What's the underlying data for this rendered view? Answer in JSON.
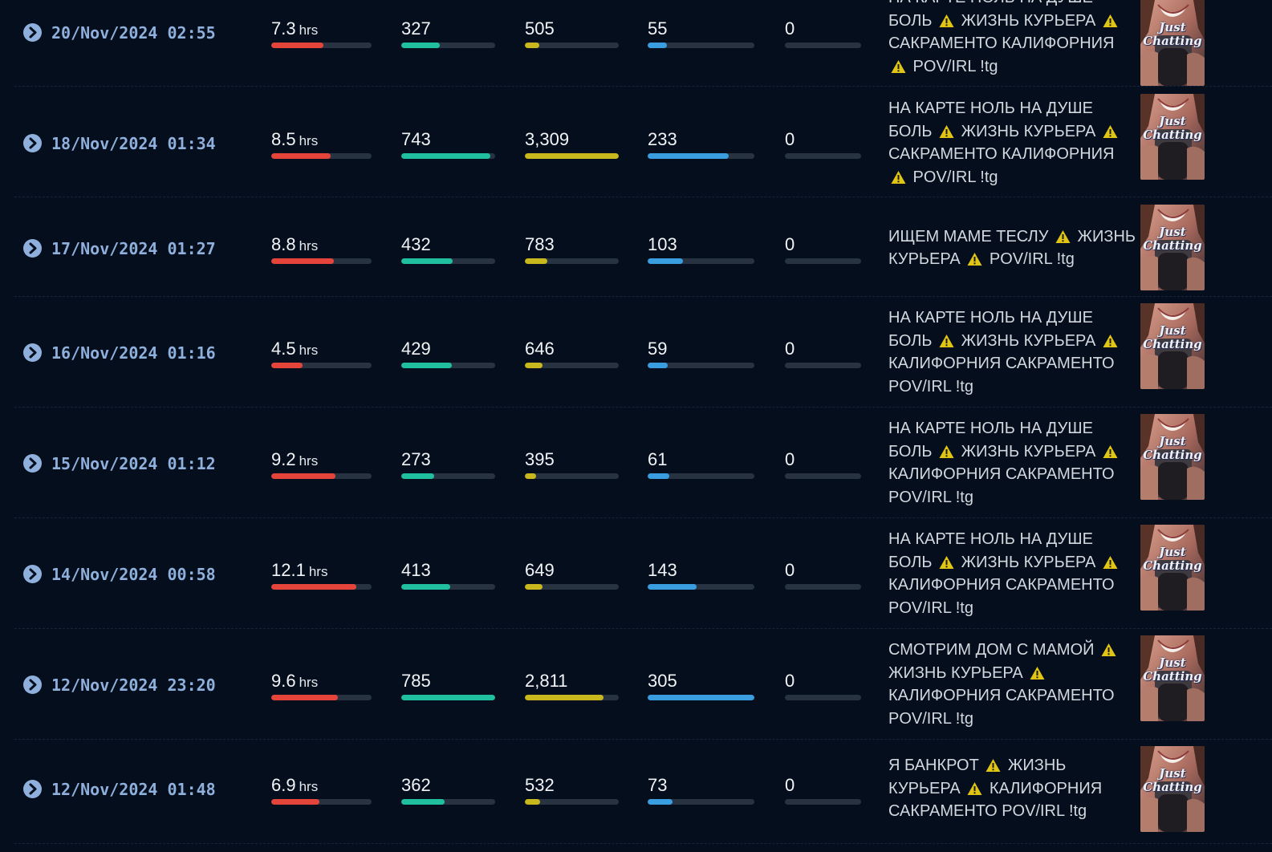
{
  "colors": {
    "background": "#040e1c",
    "date": "#8fb0dc",
    "duration_bar": "#e5443a",
    "avg_viewers_bar": "#1fbfa0",
    "peak_viewers_bar": "#c9b81d",
    "followers_bar": "#3a9de0",
    "subs_bar": "#283341",
    "warning_icon": "#e0c514"
  },
  "category": "Just Chatting",
  "duration_unit": "hrs",
  "streams": [
    {
      "date": "20/Nov/2024 02:55",
      "duration": "7.3",
      "avg_viewers": "327",
      "peak_viewers": "505",
      "followers": "55",
      "subs": "0",
      "title_lines": [
        "НА КАРТЕ НОЛЬ НА ДУШЕ",
        "БОЛЬ [!] ЖИЗНЬ КУРЬЕРА [!]",
        "САКРАМЕНТО КАЛИФОРНИЯ",
        "[!] POV/IRL !tg"
      ],
      "bars": {
        "duration": 0.52,
        "avg": 0.41,
        "peak": 0.15,
        "followers": 0.18,
        "subs": 0
      }
    },
    {
      "date": "18/Nov/2024 01:34",
      "duration": "8.5",
      "avg_viewers": "743",
      "peak_viewers": "3,309",
      "followers": "233",
      "subs": "0",
      "title_lines": [
        "НА КАРТЕ НОЛЬ НА ДУШЕ",
        "БОЛЬ [!] ЖИЗНЬ КУРЬЕРА [!]",
        "САКРАМЕНТО КАЛИФОРНИЯ",
        "[!] POV/IRL !tg"
      ],
      "bars": {
        "duration": 0.59,
        "avg": 0.95,
        "peak": 1.0,
        "followers": 0.76,
        "subs": 0
      }
    },
    {
      "date": "17/Nov/2024 01:27",
      "duration": "8.8",
      "avg_viewers": "432",
      "peak_viewers": "783",
      "followers": "103",
      "subs": "0",
      "title_lines": [
        "ИЩЕМ МАМЕ ТЕСЛУ [!] ЖИЗНЬ",
        "КУРЬЕРА [!] POV/IRL !tg"
      ],
      "bars": {
        "duration": 0.62,
        "avg": 0.55,
        "peak": 0.24,
        "followers": 0.33,
        "subs": 0
      }
    },
    {
      "date": "16/Nov/2024 01:16",
      "duration": "4.5",
      "avg_viewers": "429",
      "peak_viewers": "646",
      "followers": "59",
      "subs": "0",
      "title_lines": [
        "НА КАРТЕ НОЛЬ НА ДУШЕ",
        "БОЛЬ [!] ЖИЗНЬ КУРЬЕРА [!]",
        "КАЛИФОРНИЯ САКРАМЕНТО",
        "POV/IRL !tg"
      ],
      "bars": {
        "duration": 0.31,
        "avg": 0.54,
        "peak": 0.19,
        "followers": 0.19,
        "subs": 0
      }
    },
    {
      "date": "15/Nov/2024 01:12",
      "duration": "9.2",
      "avg_viewers": "273",
      "peak_viewers": "395",
      "followers": "61",
      "subs": "0",
      "title_lines": [
        "НА КАРТЕ НОЛЬ НА ДУШЕ",
        "БОЛЬ [!] ЖИЗНЬ КУРЬЕРА [!]",
        "КАЛИФОРНИЯ САКРАМЕНТО",
        "POV/IRL !tg"
      ],
      "bars": {
        "duration": 0.64,
        "avg": 0.35,
        "peak": 0.12,
        "followers": 0.2,
        "subs": 0
      }
    },
    {
      "date": "14/Nov/2024 00:58",
      "duration": "12.1",
      "avg_viewers": "413",
      "peak_viewers": "649",
      "followers": "143",
      "subs": "0",
      "title_lines": [
        "НА КАРТЕ НОЛЬ НА ДУШЕ",
        "БОЛЬ [!] ЖИЗНЬ КУРЬЕРА [!]",
        "КАЛИФОРНИЯ САКРАМЕНТО",
        "POV/IRL !tg"
      ],
      "bars": {
        "duration": 0.85,
        "avg": 0.52,
        "peak": 0.19,
        "followers": 0.46,
        "subs": 0
      }
    },
    {
      "date": "12/Nov/2024 23:20",
      "duration": "9.6",
      "avg_viewers": "785",
      "peak_viewers": "2,811",
      "followers": "305",
      "subs": "0",
      "title_lines": [
        "СМОТРИМ ДОМ С МАМОЙ [!]",
        "ЖИЗНЬ КУРЬЕРА [!]",
        "КАЛИФОРНИЯ САКРАМЕНТО",
        "POV/IRL !tg"
      ],
      "bars": {
        "duration": 0.66,
        "avg": 1.0,
        "peak": 0.84,
        "followers": 1.0,
        "subs": 0
      }
    },
    {
      "date": "12/Nov/2024 01:48",
      "duration": "6.9",
      "avg_viewers": "362",
      "peak_viewers": "532",
      "followers": "73",
      "subs": "0",
      "title_lines": [
        "Я БАНКРОТ [!] ЖИЗНЬ",
        "КУРЬЕРА [!] КАЛИФОРНИЯ",
        "САКРАМЕНТО POV/IRL !tg"
      ],
      "bars": {
        "duration": 0.48,
        "avg": 0.46,
        "peak": 0.16,
        "followers": 0.23,
        "subs": 0
      }
    }
  ]
}
